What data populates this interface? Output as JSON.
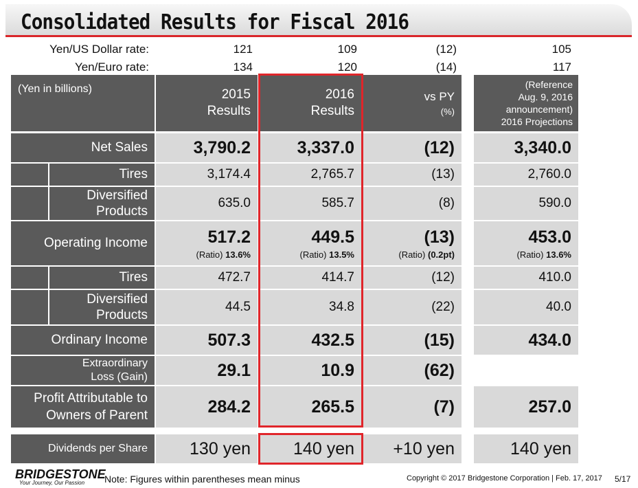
{
  "title": "Consolidated Results for Fiscal 2016",
  "rates": [
    {
      "label": "Yen/US Dollar rate:",
      "values": [
        "121",
        "109",
        "(12)",
        "105"
      ]
    },
    {
      "label": "Yen/Euro rate:",
      "values": [
        "134",
        "120",
        "(14)",
        "117"
      ]
    }
  ],
  "header": {
    "units": "(Yen in billions)",
    "col2015": [
      "2015",
      "Results"
    ],
    "col2016": [
      "2016",
      "Results"
    ],
    "vspy": [
      "vs PY",
      "(%)"
    ],
    "proj": [
      "(Reference",
      "Aug. 9, 2016",
      "announcement)",
      "2016 Projections"
    ]
  },
  "rows": {
    "net_sales": {
      "label": "Net Sales",
      "v2015": "3,790.2",
      "v2016": "3,337.0",
      "vspy": "(12)",
      "proj": "3,340.0"
    },
    "ns_tires": {
      "label": "Tires",
      "v2015": "3,174.4",
      "v2016": "2,765.7",
      "vspy": "(13)",
      "proj": "2,760.0"
    },
    "ns_div": {
      "label1": "Diversified",
      "label2": "Products",
      "v2015": "635.0",
      "v2016": "585.7",
      "vspy": "(8)",
      "proj": "590.0"
    },
    "op_income": {
      "label": "Operating Income",
      "v2015": "517.2",
      "v2016": "449.5",
      "vspy": "(13)",
      "proj": "453.0",
      "ratio_label": "(Ratio)",
      "r2015": "13.6%",
      "r2016": "13.5%",
      "rvspy": "(0.2pt)",
      "rproj": "13.6%"
    },
    "oi_tires": {
      "label": "Tires",
      "v2015": "472.7",
      "v2016": "414.7",
      "vspy": "(12)",
      "proj": "410.0"
    },
    "oi_div": {
      "label1": "Diversified",
      "label2": "Products",
      "v2015": "44.5",
      "v2016": "34.8",
      "vspy": "(22)",
      "proj": "40.0"
    },
    "ord_income": {
      "label": "Ordinary Income",
      "v2015": "507.3",
      "v2016": "432.5",
      "vspy": "(15)",
      "proj": "434.0"
    },
    "extra_loss": {
      "label1": "Extraordinary",
      "label2": "Loss (Gain)",
      "v2015": "29.1",
      "v2016": "10.9",
      "vspy": "(62)"
    },
    "profit": {
      "label1": "Profit Attributable to",
      "label2": "Owners of Parent",
      "v2015": "284.2",
      "v2016": "265.5",
      "vspy": "(7)",
      "proj": "257.0"
    },
    "dividends": {
      "label": "Dividends per Share",
      "v2015": "130 yen",
      "v2016": "140 yen",
      "vspy": "+10 yen",
      "proj": "140 yen"
    }
  },
  "footer": {
    "logo": "BRIDGESTONE",
    "tagline": "Your Journey, Our Passion",
    "note": "Note: Figures within parentheses mean minus",
    "copyright": "Copyright © 2017 Bridgestone Corporation  |  Feb. 17, 2017",
    "page": "5/17"
  },
  "colors": {
    "dark_cell": "#5a5a5a",
    "light_cell": "#d9d9d9",
    "accent_red": "#e0252a"
  }
}
